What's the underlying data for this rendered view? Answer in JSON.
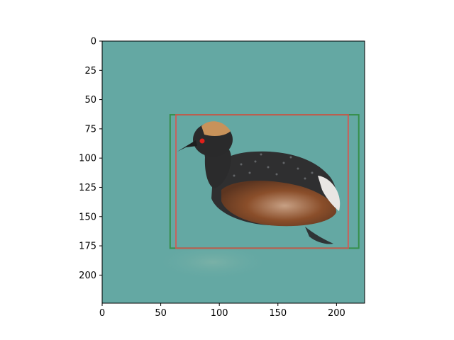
{
  "image_extent": {
    "x": [
      0,
      224
    ],
    "y": [
      0,
      224
    ]
  },
  "xaxis": {
    "ticks": [
      0,
      50,
      100,
      150,
      200
    ]
  },
  "yaxis": {
    "ticks": [
      0,
      25,
      50,
      75,
      100,
      125,
      150,
      175,
      200
    ]
  },
  "colors": {
    "water": "#64a8a3",
    "water_light": "#78b6b0",
    "bird_dark": "#2f2f30",
    "bird_grey": "#4d5052",
    "flank_brown": "#8a4e2a",
    "flank_light": "#c7a084",
    "crest": "#c8925a",
    "eye": "#e0201a",
    "box_red": "#d9534f",
    "box_green": "#2e8b3c"
  },
  "boxes": [
    {
      "label_icon": "bounding-box-green",
      "color_key": "box_green",
      "x0": 58,
      "y0": 63,
      "x1": 219,
      "y1": 177
    },
    {
      "label_icon": "bounding-box-red",
      "color_key": "box_red",
      "x0": 63,
      "y0": 63,
      "x1": 210,
      "y1": 177
    }
  ]
}
